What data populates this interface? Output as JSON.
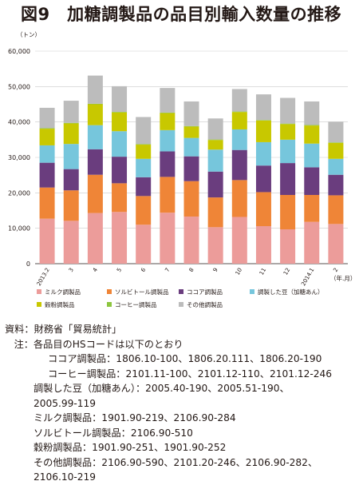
{
  "title": "図9　加糖調製品の品目別輸入数量の推移",
  "chart_data": {
    "type": "bar",
    "stacked": true,
    "unit_label": "（トン）",
    "x_unit": "（年.月）",
    "categories": [
      "2013.2",
      "3",
      "4",
      "5",
      "6",
      "7",
      "8",
      "9",
      "10",
      "11",
      "12",
      "2014.1",
      "2"
    ],
    "yticks": [
      "0",
      "10,000",
      "20,000",
      "30,000",
      "40,000",
      "50,000",
      "60,000"
    ],
    "ylim": [
      0,
      60000
    ],
    "grid": true,
    "legend_position": "bottom",
    "series": [
      {
        "name": "ミルク調製品",
        "color": "#ec9c9a",
        "values": [
          12700,
          12100,
          14300,
          14600,
          11000,
          14400,
          13300,
          10300,
          13200,
          10600,
          9700,
          11800,
          11200
        ]
      },
      {
        "name": "ソルビトール調製品",
        "color": "#ef8537",
        "values": [
          8800,
          8600,
          10800,
          8100,
          8100,
          10100,
          10000,
          8400,
          10400,
          9600,
          9700,
          7600,
          8100
        ]
      },
      {
        "name": "ココア調製品",
        "color": "#6a3d7e",
        "values": [
          7000,
          6000,
          7200,
          7500,
          5300,
          7200,
          7000,
          7300,
          8500,
          7500,
          9000,
          7800,
          5800
        ]
      },
      {
        "name": "調製した豆（加糖あん）",
        "color": "#76c6dc",
        "values": [
          4900,
          7100,
          6800,
          7200,
          5200,
          6000,
          5200,
          6200,
          5800,
          6600,
          6600,
          6700,
          4500
        ]
      },
      {
        "name": "穀粉調製品",
        "color": "#c8c800",
        "values": [
          4700,
          5800,
          5900,
          5300,
          4000,
          4800,
          3200,
          2700,
          4900,
          6100,
          4400,
          5100,
          4500
        ]
      },
      {
        "name": "コーヒー調製品",
        "color": "#8dc63f",
        "values": [
          150,
          150,
          150,
          150,
          150,
          150,
          150,
          150,
          150,
          150,
          150,
          150,
          150
        ]
      },
      {
        "name": "その他調製品",
        "color": "#bcbcbc",
        "values": [
          5750,
          6250,
          7950,
          7250,
          7650,
          6950,
          6950,
          5950,
          6350,
          7250,
          7250,
          6650,
          5850
        ]
      }
    ]
  },
  "notes": {
    "source_label": "資料：",
    "source_text": "財務省「貿易統計」",
    "note_label": "注：",
    "note_intro": "各品目のHSコードは以下のとおり",
    "lines": [
      "ココア調製品：1806.10-100、1806.20.111、1806.20-190",
      "コーヒー調製品：2101.11-100、2101.12-110、2101.12-246",
      "調製した豆（加糖あん）：2005.40-190、2005.51-190、",
      "2005.99-119",
      "ミルク調製品：1901.90-219、2106.90-284",
      "ソルビトール調製品：2106.90-510",
      "穀粉調製品：1901.90-251、1901.90-252",
      "その他調製品：2106.90-590、2101.20-246、2106.90-282、",
      "2106.10-219"
    ]
  }
}
